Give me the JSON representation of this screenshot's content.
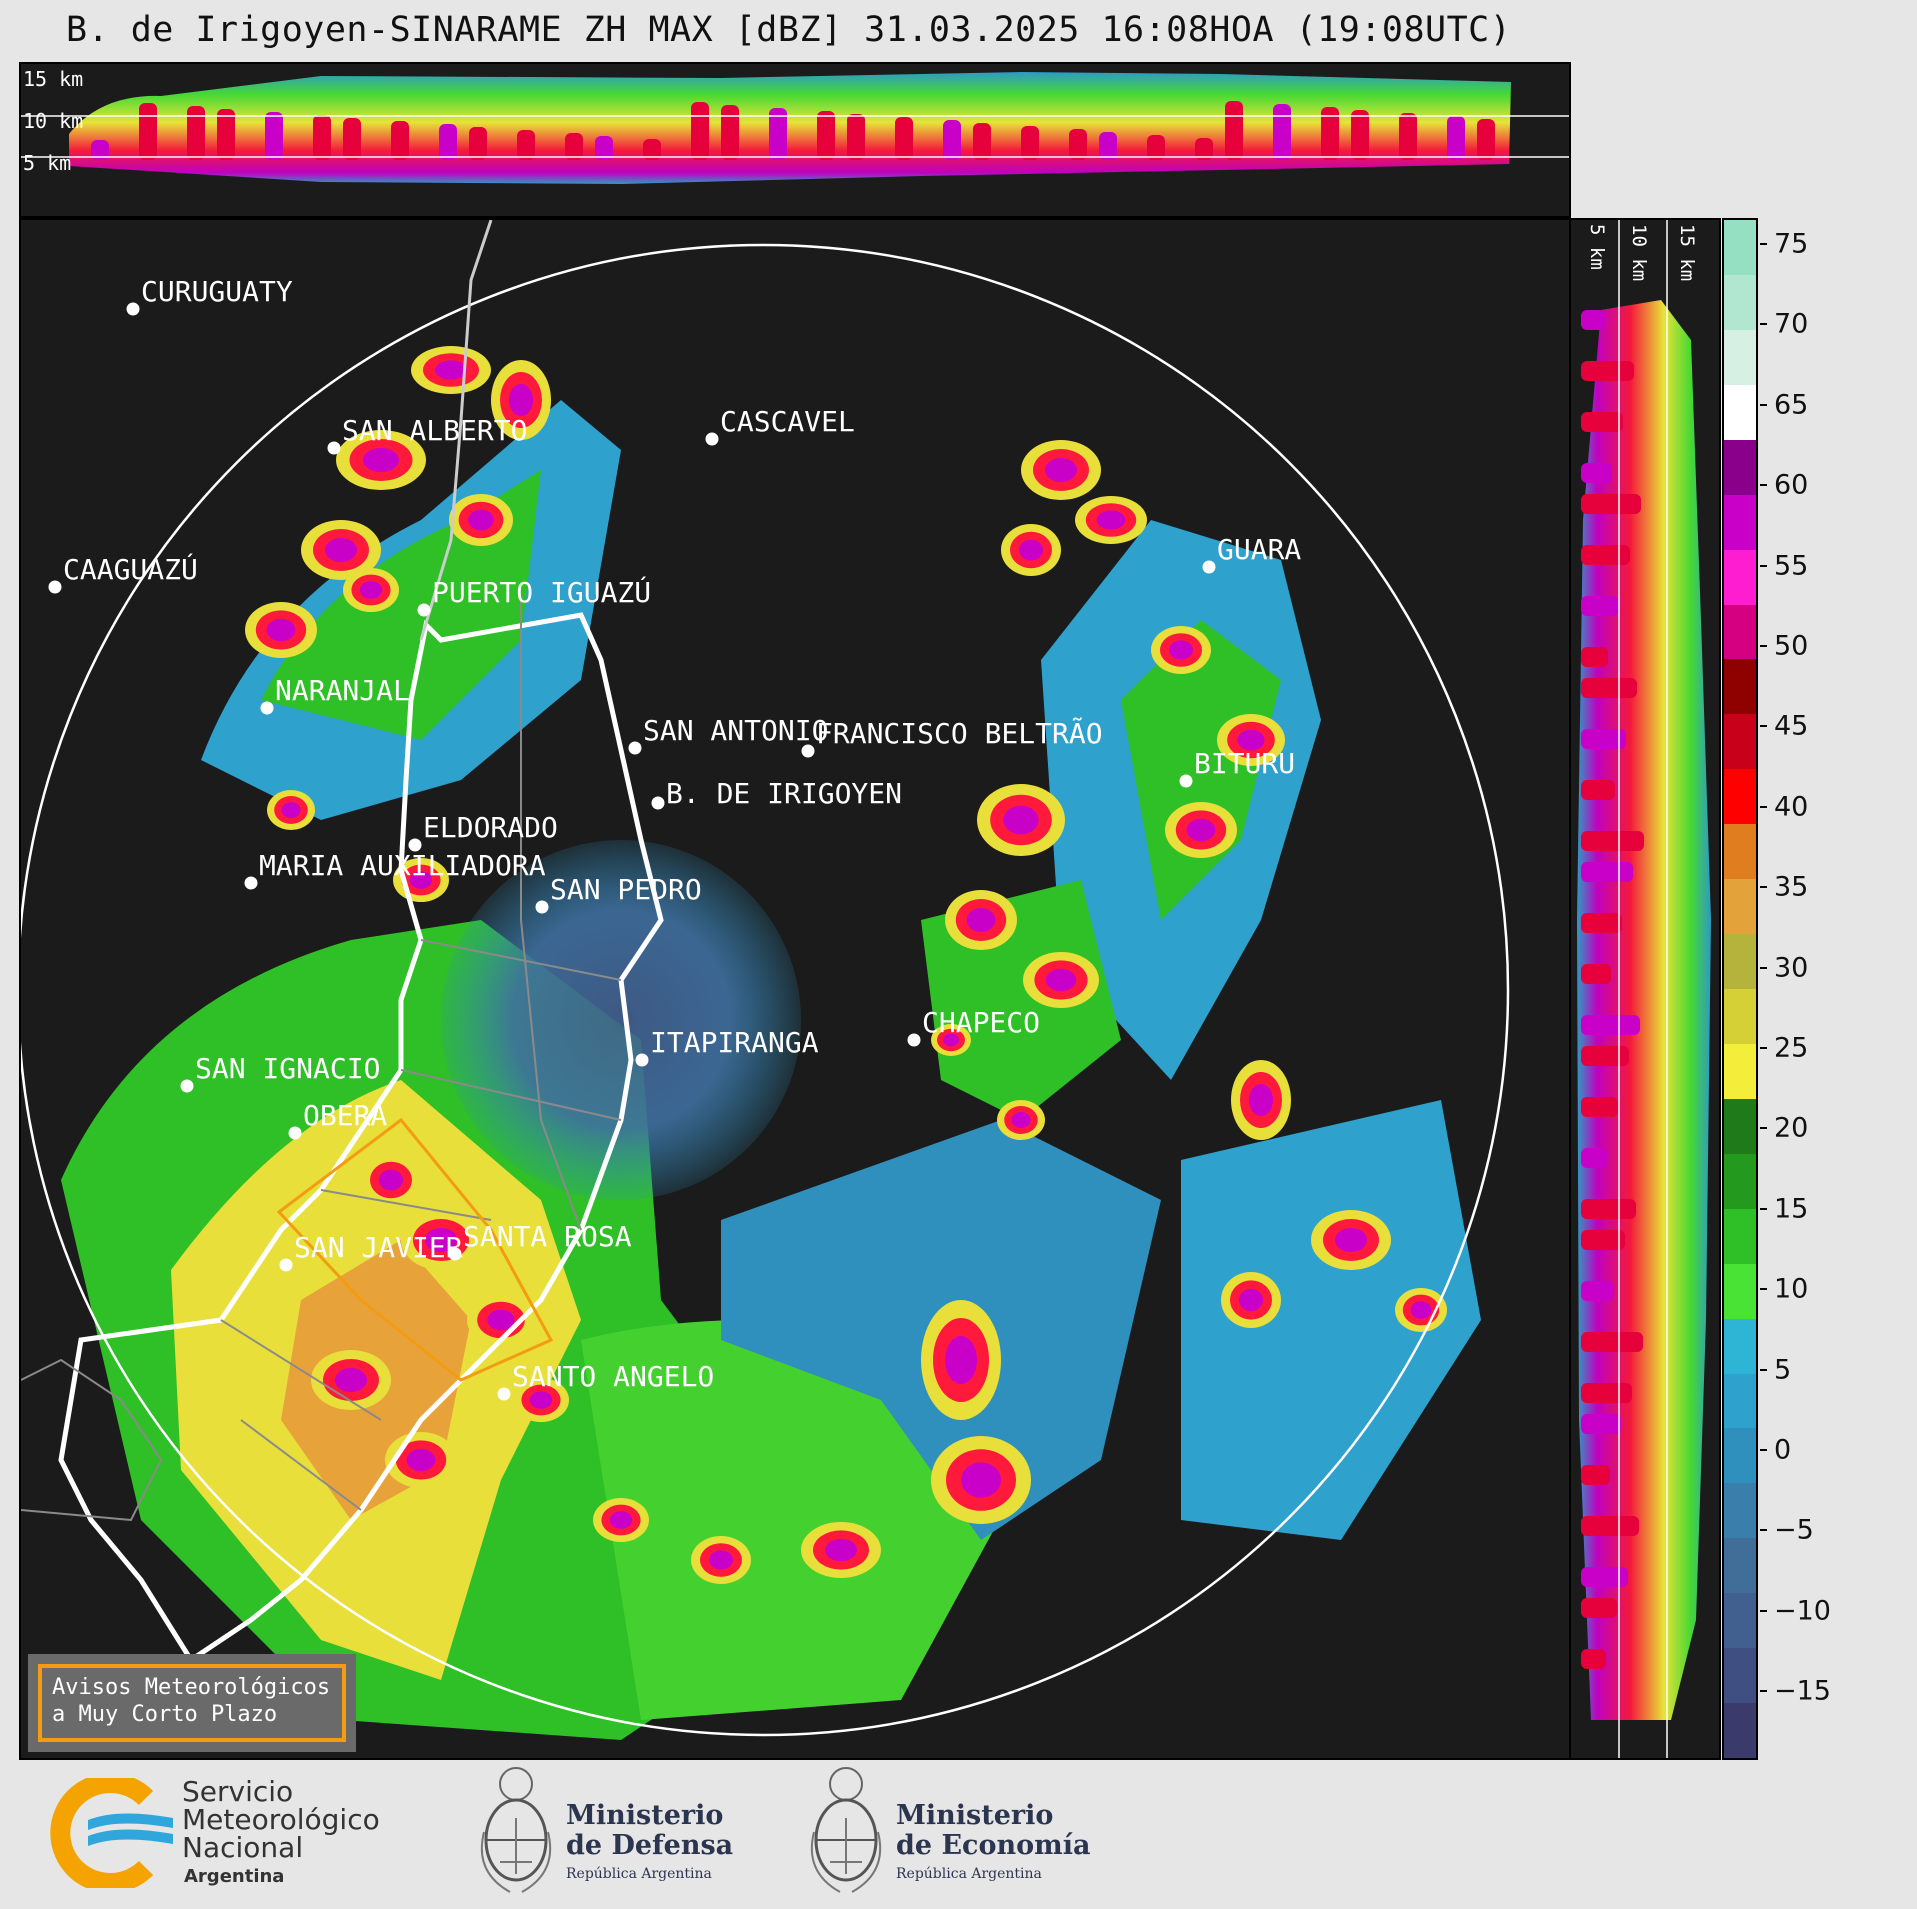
{
  "title": "B. de Irigoyen-SINARAME ZH MAX [dBZ] 31.03.2025 16:08HOA (19:08UTC)",
  "top_panel": {
    "height_labels": [
      "15 km",
      "10 km",
      "5 km"
    ]
  },
  "side_panel": {
    "height_labels": [
      "5 km",
      "10 km",
      "15 km"
    ]
  },
  "colorbar": {
    "unit": "dBZ",
    "ticks": [
      "75",
      "70",
      "65",
      "60",
      "55",
      "50",
      "45",
      "40",
      "35",
      "30",
      "25",
      "20",
      "15",
      "10",
      "5",
      "0",
      "−5",
      "−10",
      "−15"
    ],
    "colors": [
      "#3b3b6b",
      "#3f4f82",
      "#41608f",
      "#416d99",
      "#3a7fac",
      "#2f8fbd",
      "#2fa1cd",
      "#2eb5d6",
      "#48e334",
      "#2fbf26",
      "#239a1e",
      "#1f7a1a",
      "#f2ee3a",
      "#d6d037",
      "#b4b43c",
      "#e3a33a",
      "#e07d1e",
      "#ff0000",
      "#c8001a",
      "#8f0000",
      "#d40081",
      "#ff1dd2",
      "#c800c8",
      "#8b008b",
      "#ffffff",
      "#d7f0e4",
      "#b1e7d1",
      "#95dfc2"
    ],
    "min": -20,
    "max": 77
  },
  "cities": [
    {
      "name": "CURUGUATY"
    },
    {
      "name": "SAN ALBERTO"
    },
    {
      "name": "CASCAVEL"
    },
    {
      "name": "CAAGUAZÚ"
    },
    {
      "name": "GUARA"
    },
    {
      "name": "PUERTO IGUAZÚ"
    },
    {
      "name": "NARANJAL"
    },
    {
      "name": "SAN ANTONIO"
    },
    {
      "name": "FRANCISCO BELTRÃO"
    },
    {
      "name": "B. DE IRIGOYEN"
    },
    {
      "name": "BITURU"
    },
    {
      "name": "ELDORADO"
    },
    {
      "name": "MARIA AUXILIADORA"
    },
    {
      "name": "SAN PEDRO"
    },
    {
      "name": "CHAPECO"
    },
    {
      "name": "ITAPIRANGA"
    },
    {
      "name": "SAN IGNACIO"
    },
    {
      "name": "OBERA"
    },
    {
      "name": "SAN JAVIER"
    },
    {
      "name": "SANTA ROSA"
    },
    {
      "name": "SANTO ANGELO"
    }
  ],
  "warning_box": {
    "line1": "Avisos Meteorológicos",
    "line2": "a Muy Corto Plazo"
  },
  "footer": {
    "smn": {
      "line1": "Servicio",
      "line2": "Meteorológico",
      "line3": "Nacional",
      "line4": "Argentina"
    },
    "defensa": {
      "line1": "Ministerio",
      "line2": "de Defensa",
      "line3": "República Argentina"
    },
    "economia": {
      "line1": "Ministerio",
      "line2": "de Economía",
      "line3": "República Argentina"
    }
  }
}
